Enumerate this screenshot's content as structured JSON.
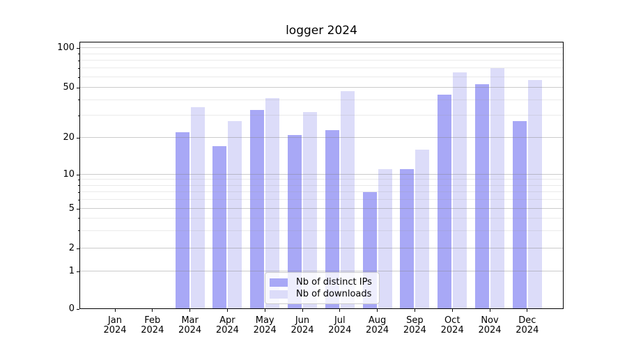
{
  "chart_data": {
    "type": "bar",
    "title": "logger 2024",
    "xlabel": "",
    "ylabel": "",
    "year_label": "2024",
    "categories": [
      "Jan",
      "Feb",
      "Mar",
      "Apr",
      "May",
      "Jun",
      "Jul",
      "Aug",
      "Sep",
      "Oct",
      "Nov",
      "Dec"
    ],
    "series": [
      {
        "name": "Nb of distinct IPs",
        "color": "#a8a8f6",
        "values": [
          0,
          0,
          22,
          17,
          33,
          21,
          23,
          7,
          11,
          44,
          53,
          27
        ]
      },
      {
        "name": "Nb of downloads",
        "color": "#dcdcf9",
        "values": [
          0,
          0,
          35,
          27,
          41,
          32,
          47,
          11,
          16,
          65,
          70,
          57
        ]
      }
    ],
    "yscale": "symlog",
    "yticks": [
      0,
      1,
      2,
      5,
      10,
      20,
      50,
      100
    ],
    "minor_gridlines": [
      3,
      4,
      6,
      7,
      8,
      9,
      30,
      40,
      60,
      70,
      80,
      90
    ],
    "ylim": [
      0,
      100
    ],
    "grid": true,
    "legend_position": "lower center"
  }
}
